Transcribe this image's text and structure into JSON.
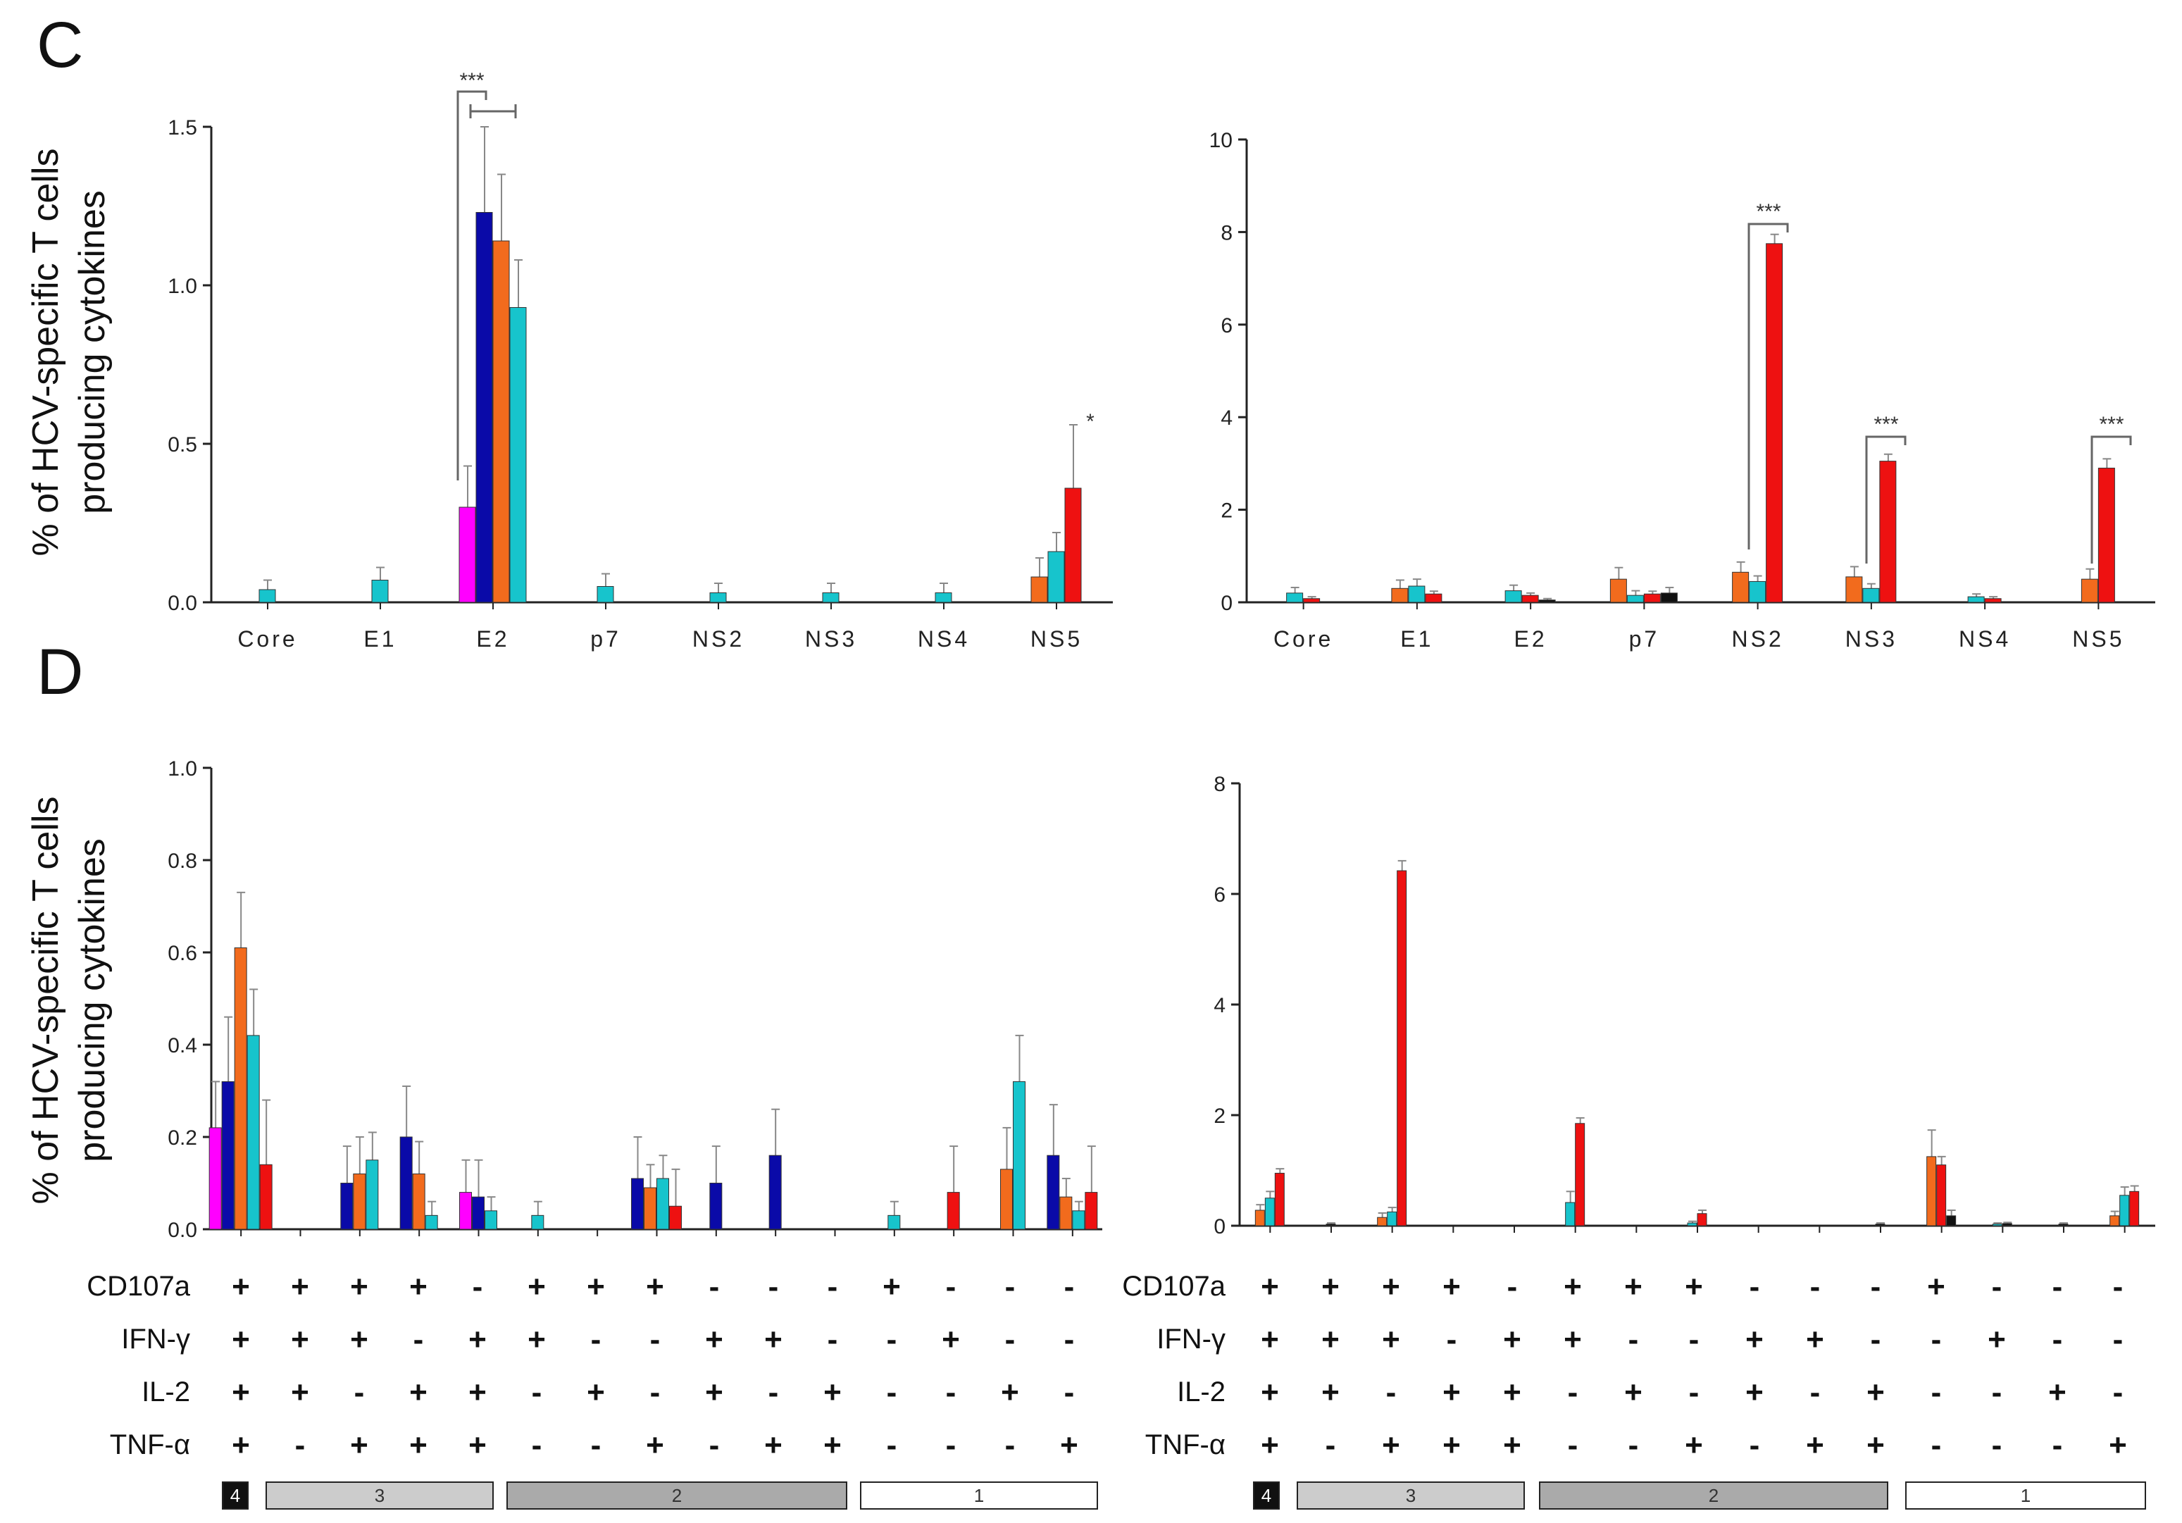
{
  "panels": [
    {
      "letter": "C"
    },
    {
      "letter": "D"
    }
  ],
  "y_axis_label_lines": [
    "% of HCV-specific T cells",
    "producing cytokines"
  ],
  "colors": {
    "magenta": "#ff00ff",
    "blue": "#0a0aa8",
    "orange": "#f26b1d",
    "cyan": "#17c4cc",
    "red": "#ee1111",
    "black": "#111111",
    "axis": "#222222",
    "error": "#888888"
  },
  "cytokine_rows": [
    "CD107a",
    "IFN-γ",
    "IL-2",
    "TNF-α"
  ],
  "combinations": [
    [
      "+",
      "+",
      "+",
      "+"
    ],
    [
      "+",
      "+",
      "+",
      "-"
    ],
    [
      "+",
      "+",
      "-",
      "+"
    ],
    [
      "+",
      "-",
      "+",
      "+"
    ],
    [
      "-",
      "+",
      "+",
      "+"
    ],
    [
      "+",
      "+",
      "-",
      "-"
    ],
    [
      "+",
      "-",
      "+",
      "-"
    ],
    [
      "+",
      "-",
      "-",
      "+"
    ],
    [
      "-",
      "+",
      "+",
      "-"
    ],
    [
      "-",
      "+",
      "-",
      "+"
    ],
    [
      "-",
      "-",
      "+",
      "+"
    ],
    [
      "+",
      "-",
      "-",
      "-"
    ],
    [
      "-",
      "+",
      "-",
      "-"
    ],
    [
      "-",
      "-",
      "+",
      "-"
    ],
    [
      "-",
      "-",
      "-",
      "+"
    ]
  ],
  "group_labels": [
    "4",
    "3",
    "2",
    "1"
  ],
  "significance": {
    "three": "***",
    "one": "*"
  },
  "chart_data": [
    {
      "type": "bar",
      "panel": "C",
      "side": "left",
      "categories": [
        "Core",
        "E1",
        "E2",
        "p7",
        "NS2",
        "NS3",
        "NS4",
        "NS5"
      ],
      "ylim": [
        0,
        1.5
      ],
      "yticks": [
        "0.0",
        "0.5",
        "1.0",
        "1.5"
      ],
      "bars": [
        {
          "category": 0,
          "color": "cyan",
          "value": 0.04,
          "error": 0.03
        },
        {
          "category": 1,
          "color": "cyan",
          "value": 0.07,
          "error": 0.04
        },
        {
          "category": 2,
          "color": "magenta",
          "value": 0.3,
          "error": 0.13
        },
        {
          "category": 2,
          "color": "blue",
          "value": 1.23,
          "error": 0.27
        },
        {
          "category": 2,
          "color": "orange",
          "value": 1.14,
          "error": 0.21
        },
        {
          "category": 2,
          "color": "cyan",
          "value": 0.93,
          "error": 0.15
        },
        {
          "category": 3,
          "color": "cyan",
          "value": 0.05,
          "error": 0.04
        },
        {
          "category": 4,
          "color": "cyan",
          "value": 0.03,
          "error": 0.03
        },
        {
          "category": 5,
          "color": "cyan",
          "value": 0.03,
          "error": 0.03
        },
        {
          "category": 6,
          "color": "cyan",
          "value": 0.03,
          "error": 0.03
        },
        {
          "category": 7,
          "color": "orange",
          "value": 0.08,
          "error": 0.06
        },
        {
          "category": 7,
          "color": "cyan",
          "value": 0.16,
          "error": 0.06
        },
        {
          "category": 7,
          "color": "red",
          "value": 0.36,
          "error": 0.2
        }
      ]
    },
    {
      "type": "bar",
      "panel": "C",
      "side": "right",
      "categories": [
        "Core",
        "E1",
        "E2",
        "p7",
        "NS2",
        "NS3",
        "NS4",
        "NS5"
      ],
      "ylim": [
        0,
        10
      ],
      "yticks": [
        "0",
        "2",
        "4",
        "6",
        "8",
        "10"
      ],
      "bars": [
        {
          "category": 0,
          "color": "cyan",
          "value": 0.2,
          "error": 0.12
        },
        {
          "category": 0,
          "color": "red",
          "value": 0.08,
          "error": 0.04
        },
        {
          "category": 1,
          "color": "orange",
          "value": 0.3,
          "error": 0.18
        },
        {
          "category": 1,
          "color": "cyan",
          "value": 0.35,
          "error": 0.15
        },
        {
          "category": 1,
          "color": "red",
          "value": 0.18,
          "error": 0.06
        },
        {
          "category": 2,
          "color": "cyan",
          "value": 0.25,
          "error": 0.12
        },
        {
          "category": 2,
          "color": "red",
          "value": 0.15,
          "error": 0.05
        },
        {
          "category": 2,
          "color": "black",
          "value": 0.05,
          "error": 0.03
        },
        {
          "category": 3,
          "color": "orange",
          "value": 0.5,
          "error": 0.25
        },
        {
          "category": 3,
          "color": "cyan",
          "value": 0.15,
          "error": 0.1
        },
        {
          "category": 3,
          "color": "red",
          "value": 0.18,
          "error": 0.06
        },
        {
          "category": 3,
          "color": "black",
          "value": 0.2,
          "error": 0.12
        },
        {
          "category": 4,
          "color": "orange",
          "value": 0.65,
          "error": 0.22
        },
        {
          "category": 4,
          "color": "cyan",
          "value": 0.45,
          "error": 0.12
        },
        {
          "category": 4,
          "color": "red",
          "value": 7.75,
          "error": 0.2
        },
        {
          "category": 5,
          "color": "orange",
          "value": 0.55,
          "error": 0.22
        },
        {
          "category": 5,
          "color": "cyan",
          "value": 0.3,
          "error": 0.1
        },
        {
          "category": 5,
          "color": "red",
          "value": 3.05,
          "error": 0.15
        },
        {
          "category": 6,
          "color": "cyan",
          "value": 0.12,
          "error": 0.06
        },
        {
          "category": 6,
          "color": "red",
          "value": 0.08,
          "error": 0.04
        },
        {
          "category": 7,
          "color": "orange",
          "value": 0.5,
          "error": 0.22
        },
        {
          "category": 7,
          "color": "red",
          "value": 2.9,
          "error": 0.2
        }
      ]
    },
    {
      "type": "bar",
      "panel": "D",
      "side": "left",
      "categories": [
        "1",
        "2",
        "3",
        "4",
        "5",
        "6",
        "7",
        "8",
        "9",
        "10",
        "11",
        "12",
        "13",
        "14",
        "15"
      ],
      "ylim": [
        0,
        1.0
      ],
      "yticks": [
        "0.0",
        "0.2",
        "0.4",
        "0.6",
        "0.8",
        "1.0"
      ],
      "bars": [
        {
          "category": 0,
          "color": "magenta",
          "value": 0.22,
          "error": 0.1
        },
        {
          "category": 0,
          "color": "blue",
          "value": 0.32,
          "error": 0.14
        },
        {
          "category": 0,
          "color": "orange",
          "value": 0.61,
          "error": 0.12
        },
        {
          "category": 0,
          "color": "cyan",
          "value": 0.42,
          "error": 0.1
        },
        {
          "category": 0,
          "color": "red",
          "value": 0.14,
          "error": 0.14
        },
        {
          "category": 2,
          "color": "blue",
          "value": 0.1,
          "error": 0.08
        },
        {
          "category": 2,
          "color": "orange",
          "value": 0.12,
          "error": 0.08
        },
        {
          "category": 2,
          "color": "cyan",
          "value": 0.15,
          "error": 0.06
        },
        {
          "category": 3,
          "color": "blue",
          "value": 0.2,
          "error": 0.11
        },
        {
          "category": 3,
          "color": "orange",
          "value": 0.12,
          "error": 0.07
        },
        {
          "category": 3,
          "color": "cyan",
          "value": 0.03,
          "error": 0.03
        },
        {
          "category": 4,
          "color": "magenta",
          "value": 0.08,
          "error": 0.07
        },
        {
          "category": 4,
          "color": "blue",
          "value": 0.07,
          "error": 0.08
        },
        {
          "category": 4,
          "color": "cyan",
          "value": 0.04,
          "error": 0.03
        },
        {
          "category": 5,
          "color": "cyan",
          "value": 0.03,
          "error": 0.03
        },
        {
          "category": 7,
          "color": "blue",
          "value": 0.11,
          "error": 0.09
        },
        {
          "category": 7,
          "color": "orange",
          "value": 0.09,
          "error": 0.05
        },
        {
          "category": 7,
          "color": "cyan",
          "value": 0.11,
          "error": 0.05
        },
        {
          "category": 7,
          "color": "red",
          "value": 0.05,
          "error": 0.08
        },
        {
          "category": 8,
          "color": "blue",
          "value": 0.1,
          "error": 0.08
        },
        {
          "category": 9,
          "color": "blue",
          "value": 0.16,
          "error": 0.1
        },
        {
          "category": 11,
          "color": "cyan",
          "value": 0.03,
          "error": 0.03
        },
        {
          "category": 12,
          "color": "red",
          "value": 0.08,
          "error": 0.1
        },
        {
          "category": 13,
          "color": "orange",
          "value": 0.13,
          "error": 0.09
        },
        {
          "category": 13,
          "color": "cyan",
          "value": 0.32,
          "error": 0.1
        },
        {
          "category": 14,
          "color": "blue",
          "value": 0.16,
          "error": 0.11
        },
        {
          "category": 14,
          "color": "orange",
          "value": 0.07,
          "error": 0.04
        },
        {
          "category": 14,
          "color": "cyan",
          "value": 0.04,
          "error": 0.02
        },
        {
          "category": 14,
          "color": "red",
          "value": 0.08,
          "error": 0.1
        }
      ]
    },
    {
      "type": "bar",
      "panel": "D",
      "side": "right",
      "categories": [
        "1",
        "2",
        "3",
        "4",
        "5",
        "6",
        "7",
        "8",
        "9",
        "10",
        "11",
        "12",
        "13",
        "14",
        "15"
      ],
      "ylim": [
        0,
        8
      ],
      "yticks": [
        "0",
        "2",
        "4",
        "6",
        "8"
      ],
      "bars": [
        {
          "category": 0,
          "color": "orange",
          "value": 0.28,
          "error": 0.1
        },
        {
          "category": 0,
          "color": "cyan",
          "value": 0.5,
          "error": 0.12
        },
        {
          "category": 0,
          "color": "red",
          "value": 0.95,
          "error": 0.08
        },
        {
          "category": 1,
          "color": "black",
          "value": 0.03,
          "error": 0.02
        },
        {
          "category": 2,
          "color": "orange",
          "value": 0.15,
          "error": 0.08
        },
        {
          "category": 2,
          "color": "cyan",
          "value": 0.25,
          "error": 0.08
        },
        {
          "category": 2,
          "color": "red",
          "value": 6.42,
          "error": 0.18
        },
        {
          "category": 5,
          "color": "cyan",
          "value": 0.42,
          "error": 0.2
        },
        {
          "category": 5,
          "color": "red",
          "value": 1.85,
          "error": 0.1
        },
        {
          "category": 7,
          "color": "cyan",
          "value": 0.05,
          "error": 0.03
        },
        {
          "category": 7,
          "color": "red",
          "value": 0.22,
          "error": 0.06
        },
        {
          "category": 10,
          "color": "black",
          "value": 0.03,
          "error": 0.02
        },
        {
          "category": 11,
          "color": "orange",
          "value": 1.25,
          "error": 0.48
        },
        {
          "category": 11,
          "color": "red",
          "value": 1.1,
          "error": 0.15
        },
        {
          "category": 11,
          "color": "black",
          "value": 0.18,
          "error": 0.1
        },
        {
          "category": 12,
          "color": "cyan",
          "value": 0.03,
          "error": 0.02
        },
        {
          "category": 12,
          "color": "black",
          "value": 0.04,
          "error": 0.02
        },
        {
          "category": 13,
          "color": "black",
          "value": 0.03,
          "error": 0.02
        },
        {
          "category": 14,
          "color": "orange",
          "value": 0.18,
          "error": 0.08
        },
        {
          "category": 14,
          "color": "cyan",
          "value": 0.55,
          "error": 0.15
        },
        {
          "category": 14,
          "color": "red",
          "value": 0.62,
          "error": 0.1
        }
      ]
    }
  ]
}
